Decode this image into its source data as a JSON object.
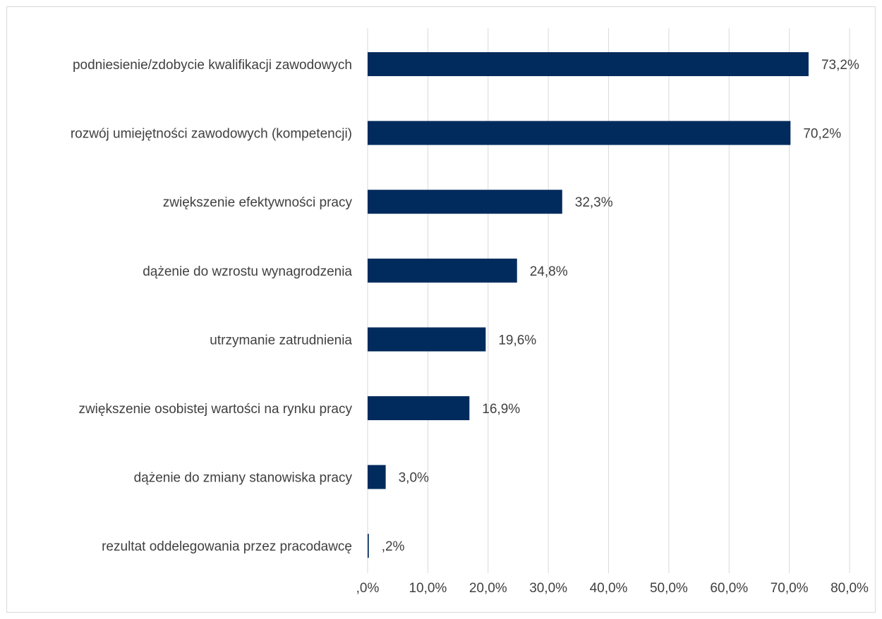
{
  "chart_data": {
    "type": "bar",
    "orientation": "horizontal",
    "categories": [
      "podniesienie/zdobycie kwalifikacji zawodowych",
      "rozwój umiejętności zawodowych (kompetencji)",
      "zwiększenie efektywności pracy",
      "dążenie do wzrostu wynagrodzenia",
      "utrzymanie zatrudnienia",
      "zwiększenie osobistej wartości na rynku pracy",
      "dążenie do zmiany stanowiska pracy",
      "rezultat oddelegowania przez pracodawcę"
    ],
    "values": [
      73.2,
      70.2,
      32.3,
      24.8,
      19.6,
      16.9,
      3.0,
      0.2
    ],
    "value_labels": [
      "73,2%",
      "70,2%",
      "32,3%",
      "24,8%",
      "19,6%",
      "16,9%",
      "3,0%",
      ",2%"
    ],
    "xlim": [
      0,
      80
    ],
    "x_ticks": [
      ",0%",
      "10,0%",
      "20,0%",
      "30,0%",
      "40,0%",
      "50,0%",
      "60,0%",
      "70,0%",
      "80,0%"
    ],
    "grid": "vertical",
    "legend": "none",
    "bar_color": "#002b5c",
    "grid_color": "#d9d9d9",
    "text_color": "#404040"
  }
}
